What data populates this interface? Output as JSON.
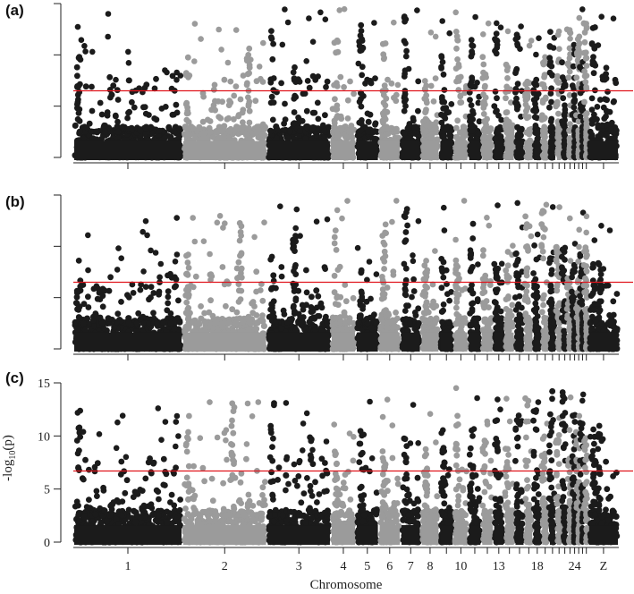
{
  "chart_data": [
    {
      "type": "scatter",
      "panel_label": "(a)",
      "threshold_y": 6.5,
      "ylim": [
        0,
        15
      ],
      "show_y_tick_labels": false,
      "show_x_tick_labels": false,
      "seed": 11
    },
    {
      "type": "scatter",
      "panel_label": "(b)",
      "threshold_y": 6.5,
      "ylim": [
        0,
        15
      ],
      "show_y_tick_labels": false,
      "show_x_tick_labels": false,
      "seed": 23
    },
    {
      "type": "scatter",
      "panel_label": "(c)",
      "threshold_y": 6.7,
      "ylim": [
        0,
        15
      ],
      "yticks": [
        0,
        5,
        10,
        15
      ],
      "ylabel": "-log10(p)",
      "show_y_tick_labels": true,
      "show_x_tick_labels": true,
      "seed": 37
    }
  ],
  "chromosomes": [
    {
      "name": "1",
      "start": 0.0,
      "end": 0.2,
      "color": "dark",
      "label": "1"
    },
    {
      "name": "2",
      "start": 0.2,
      "end": 0.355,
      "color": "light",
      "label": "2"
    },
    {
      "name": "3",
      "start": 0.355,
      "end": 0.472,
      "color": "dark",
      "label": "3"
    },
    {
      "name": "4",
      "start": 0.472,
      "end": 0.518,
      "color": "light",
      "label": "4"
    },
    {
      "name": "5",
      "start": 0.518,
      "end": 0.56,
      "color": "dark",
      "label": "5"
    },
    {
      "name": "6",
      "start": 0.56,
      "end": 0.6,
      "color": "light",
      "label": "6"
    },
    {
      "name": "7",
      "start": 0.6,
      "end": 0.637,
      "color": "dark",
      "label": "7"
    },
    {
      "name": "8",
      "start": 0.637,
      "end": 0.671,
      "color": "light",
      "label": "8"
    },
    {
      "name": "9",
      "start": 0.671,
      "end": 0.697,
      "color": "dark",
      "label": ""
    },
    {
      "name": "10",
      "start": 0.697,
      "end": 0.724,
      "color": "light",
      "label": "10"
    },
    {
      "name": "11",
      "start": 0.724,
      "end": 0.748,
      "color": "dark",
      "label": ""
    },
    {
      "name": "12",
      "start": 0.748,
      "end": 0.77,
      "color": "light",
      "label": ""
    },
    {
      "name": "13",
      "start": 0.77,
      "end": 0.79,
      "color": "dark",
      "label": "13"
    },
    {
      "name": "14",
      "start": 0.79,
      "end": 0.809,
      "color": "light",
      "label": ""
    },
    {
      "name": "15",
      "start": 0.809,
      "end": 0.827,
      "color": "dark",
      "label": ""
    },
    {
      "name": "17",
      "start": 0.827,
      "end": 0.843,
      "color": "light",
      "label": ""
    },
    {
      "name": "18",
      "start": 0.843,
      "end": 0.858,
      "color": "dark",
      "label": "18"
    },
    {
      "name": "19",
      "start": 0.858,
      "end": 0.872,
      "color": "light",
      "label": ""
    },
    {
      "name": "20",
      "start": 0.872,
      "end": 0.885,
      "color": "dark",
      "label": ""
    },
    {
      "name": "21",
      "start": 0.885,
      "end": 0.896,
      "color": "light",
      "label": ""
    },
    {
      "name": "22",
      "start": 0.896,
      "end": 0.906,
      "color": "dark",
      "label": ""
    },
    {
      "name": "23",
      "start": 0.906,
      "end": 0.915,
      "color": "light",
      "label": ""
    },
    {
      "name": "24",
      "start": 0.915,
      "end": 0.923,
      "color": "dark",
      "label": "24"
    },
    {
      "name": "25",
      "start": 0.923,
      "end": 0.93,
      "color": "light",
      "label": ""
    },
    {
      "name": "26",
      "start": 0.93,
      "end": 0.937,
      "color": "dark",
      "label": ""
    },
    {
      "name": "27",
      "start": 0.937,
      "end": 0.944,
      "color": "light",
      "label": ""
    },
    {
      "name": "Z",
      "start": 0.944,
      "end": 1.0,
      "color": "dark",
      "label": "Z"
    }
  ],
  "colors": {
    "dark": "#1b1b1b",
    "light": "#9b9b9b",
    "threshold": "#e0141c",
    "axis": "#222222"
  },
  "labels": {
    "xlabel": "Chromosome",
    "ylabel_main": "-log",
    "ylabel_sub": "10",
    "ylabel_paren": "(p)"
  }
}
